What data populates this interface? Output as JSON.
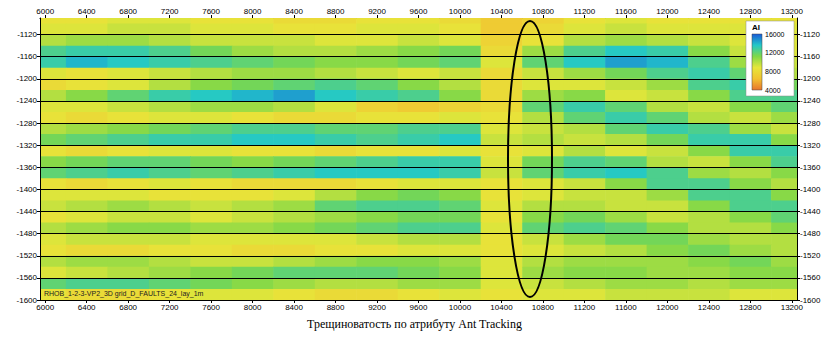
{
  "chart_data": {
    "type": "heatmap",
    "title": "Трещиноватость по атрибуту Ant Tracking",
    "annotation": "RHOB_1-2-3-VP2_3D grid_D_FAULTS_24_lay_1m",
    "x": [
      6000,
      6400,
      6800,
      7200,
      7600,
      8000,
      8400,
      8800,
      9200,
      9600,
      10000,
      10400,
      10800,
      11200,
      11600,
      12000,
      12400,
      12800,
      13200
    ],
    "y": [
      -1090,
      -1110,
      -1130,
      -1150,
      -1170,
      -1190,
      -1210,
      -1230,
      -1250,
      -1270,
      -1290,
      -1310,
      -1330,
      -1350,
      -1370,
      -1390,
      -1410,
      -1430,
      -1450,
      -1470,
      -1490,
      -1510,
      -1530,
      -1550,
      -1570,
      -1590
    ],
    "values": [
      [
        8500,
        8500,
        9000,
        9000,
        8500,
        8500,
        8000,
        8000,
        8500,
        8500,
        8000,
        7000,
        7500,
        8500,
        9000,
        8500,
        8500,
        8500,
        8500
      ],
      [
        9000,
        9000,
        9500,
        9500,
        9000,
        9000,
        8500,
        8500,
        9000,
        9000,
        8500,
        7000,
        8000,
        9000,
        9500,
        9000,
        9000,
        9000,
        9000
      ],
      [
        10000,
        10500,
        10500,
        10000,
        9500,
        9500,
        9500,
        9000,
        9000,
        9500,
        9000,
        7500,
        8500,
        10000,
        10500,
        10000,
        9500,
        9000,
        9000
      ],
      [
        12500,
        13000,
        13000,
        12500,
        11500,
        10500,
        10000,
        10000,
        10500,
        11000,
        11500,
        8000,
        10500,
        12500,
        13500,
        13000,
        11000,
        9500,
        9000
      ],
      [
        13000,
        14000,
        13500,
        13000,
        12500,
        12000,
        11500,
        11000,
        11000,
        11500,
        12000,
        9000,
        12000,
        13500,
        14500,
        14000,
        12500,
        10500,
        9500
      ],
      [
        9000,
        8500,
        9000,
        9500,
        10000,
        10500,
        10500,
        10000,
        9500,
        9000,
        9500,
        8000,
        9500,
        10500,
        11500,
        12500,
        13000,
        12000,
        10000
      ],
      [
        8000,
        8500,
        9000,
        10000,
        11000,
        11500,
        12000,
        12500,
        12000,
        11000,
        10000,
        8000,
        9000,
        9000,
        9500,
        10500,
        12500,
        13000,
        11500
      ],
      [
        10000,
        11000,
        12000,
        13000,
        13500,
        14000,
        14500,
        13500,
        13000,
        12500,
        11000,
        8000,
        10500,
        11000,
        9000,
        9500,
        11000,
        12500,
        12500
      ],
      [
        9000,
        9000,
        9500,
        10000,
        10500,
        10500,
        10000,
        9000,
        7500,
        7000,
        7500,
        8000,
        12000,
        13000,
        12000,
        10000,
        9500,
        11000,
        12000
      ],
      [
        8500,
        8000,
        8500,
        9000,
        9000,
        8500,
        8000,
        8000,
        8500,
        8500,
        9000,
        8500,
        10000,
        12000,
        13000,
        12000,
        10000,
        9500,
        10500
      ],
      [
        10000,
        10500,
        11000,
        11500,
        12000,
        12500,
        12500,
        12000,
        12000,
        12500,
        12500,
        9000,
        9500,
        10000,
        12000,
        13000,
        12500,
        10500,
        9500
      ],
      [
        11500,
        12000,
        12500,
        13000,
        13000,
        13500,
        13500,
        13000,
        12500,
        13000,
        13500,
        9500,
        10000,
        9500,
        10000,
        11500,
        13000,
        13000,
        11000
      ],
      [
        8500,
        8000,
        8500,
        9000,
        9000,
        8500,
        8500,
        8000,
        8500,
        8500,
        9000,
        8500,
        9000,
        10000,
        9000,
        9500,
        11000,
        13000,
        13000
      ],
      [
        11000,
        11500,
        12000,
        12000,
        11500,
        11000,
        11500,
        12000,
        12500,
        13000,
        13000,
        9000,
        11500,
        12500,
        12000,
        10000,
        9500,
        11000,
        12500
      ],
      [
        12000,
        12500,
        13000,
        12500,
        12000,
        12500,
        13000,
        13500,
        13500,
        13500,
        13000,
        9500,
        12000,
        13000,
        13500,
        12500,
        10500,
        10000,
        11000
      ],
      [
        8500,
        8000,
        8500,
        9000,
        8500,
        8000,
        8000,
        8000,
        8500,
        9000,
        9000,
        8500,
        9000,
        9500,
        11000,
        12500,
        12500,
        11000,
        10000
      ],
      [
        9000,
        9000,
        9000,
        8500,
        8500,
        8500,
        9000,
        10000,
        11000,
        11500,
        11000,
        8500,
        9000,
        9500,
        9500,
        10500,
        12500,
        12500,
        11000
      ],
      [
        9500,
        10000,
        10500,
        10000,
        9500,
        10000,
        10500,
        12000,
        12500,
        12500,
        12000,
        9000,
        10000,
        10000,
        9500,
        9500,
        11000,
        12500,
        12500
      ],
      [
        8500,
        9000,
        9500,
        9500,
        9000,
        9500,
        10000,
        10500,
        11000,
        11500,
        11500,
        8500,
        11000,
        11500,
        10500,
        9500,
        10000,
        11000,
        12000
      ],
      [
        10000,
        10500,
        11000,
        11000,
        10500,
        10500,
        11000,
        11500,
        12000,
        12500,
        12500,
        9000,
        12000,
        12500,
        12000,
        11000,
        10000,
        10000,
        11000
      ],
      [
        9000,
        9500,
        9500,
        9500,
        9000,
        9000,
        9000,
        9000,
        9500,
        10000,
        10000,
        8500,
        9500,
        10500,
        11500,
        11500,
        10500,
        10000,
        10000
      ],
      [
        8500,
        8000,
        8000,
        8500,
        8500,
        8000,
        8000,
        8500,
        8500,
        9000,
        9000,
        8500,
        9000,
        9500,
        10000,
        11000,
        11500,
        10500,
        10000
      ],
      [
        10000,
        10500,
        10500,
        10000,
        9500,
        9500,
        10000,
        10500,
        11000,
        11000,
        10500,
        9000,
        10000,
        10500,
        10500,
        10500,
        11000,
        11500,
        10500
      ],
      [
        9000,
        9500,
        10000,
        10500,
        11000,
        11500,
        12000,
        12000,
        12000,
        11500,
        11000,
        9000,
        10500,
        11000,
        11000,
        10500,
        10500,
        11000,
        11000
      ],
      [
        12000,
        12500,
        12500,
        12000,
        11500,
        11000,
        10500,
        10000,
        10000,
        10500,
        10500,
        9000,
        9500,
        10000,
        10500,
        10500,
        10000,
        10500,
        10500
      ],
      [
        8500,
        8000,
        8000,
        8500,
        9000,
        9000,
        8500,
        8000,
        8000,
        8500,
        9000,
        8500,
        9000,
        9000,
        9500,
        9500,
        9500,
        9000,
        9000
      ]
    ],
    "xlim": [
      5950,
      13250
    ],
    "xticks": [
      6000,
      6400,
      6800,
      7200,
      7600,
      8000,
      8400,
      8800,
      9200,
      9600,
      10000,
      10400,
      10800,
      11200,
      11600,
      12000,
      12400,
      12800,
      13200
    ],
    "ylim": [
      -1600,
      -1090
    ],
    "yticks": [
      -1600,
      -1560,
      -1520,
      -1480,
      -1440,
      -1400,
      -1360,
      -1320,
      -1280,
      -1240,
      -1200,
      -1160,
      -1120
    ],
    "grid": true,
    "colorbar": {
      "label": "AI",
      "range": [
        4000,
        16000
      ],
      "ticks": [
        4000,
        8000,
        12000,
        16000
      ]
    }
  }
}
